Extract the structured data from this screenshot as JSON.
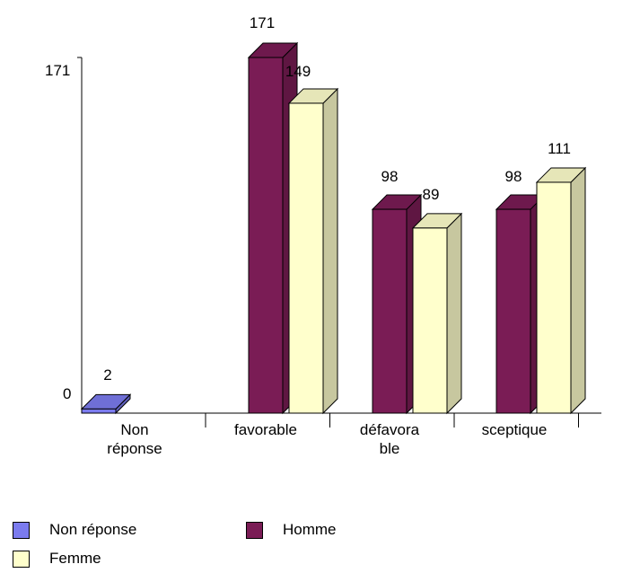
{
  "chart_data": {
    "type": "bar",
    "categories": [
      "Non\nréponse",
      "favorable",
      "défavora\nble",
      "sceptique"
    ],
    "series": [
      {
        "name": "Non réponse",
        "color": "#7b7bee",
        "values": [
          2,
          null,
          null,
          null
        ]
      },
      {
        "name": "Homme",
        "color": "#7a1c55",
        "values": [
          null,
          171,
          98,
          98
        ]
      },
      {
        "name": "Femme",
        "color": "#ffffcc",
        "values": [
          null,
          149,
          89,
          111
        ]
      }
    ],
    "y_ticks": [
      "0",
      "171"
    ],
    "ylim": [
      0,
      171
    ],
    "grid": false,
    "legend_position": "bottom-left"
  },
  "legend": {
    "items": [
      {
        "label": "Non réponse",
        "color": "#7b7bee"
      },
      {
        "label": "Homme",
        "color": "#7a1c55"
      },
      {
        "label": "Femme",
        "color": "#ffffcc"
      }
    ]
  }
}
